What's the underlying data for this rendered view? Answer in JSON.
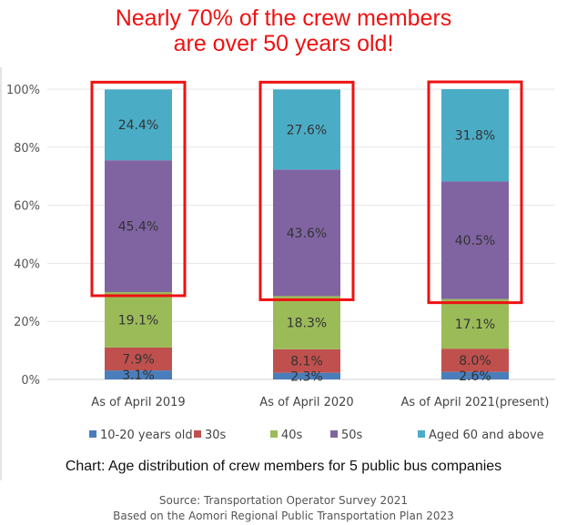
{
  "headline": {
    "line1": "Nearly 70% of the crew members",
    "line2": "are over 50 years old!"
  },
  "caption": "Chart: Age distribution of crew members for 5 public bus companies",
  "source": {
    "line1": "Source: Transportation Operator Survey 2021",
    "line2": "Based on the Aomori Regional Public Transportation Plan 2023"
  },
  "colors": {
    "highlight": "#ee1111",
    "headline": "#ee1111"
  },
  "chart_data": {
    "type": "bar",
    "stacked": true,
    "categories": [
      "As of April 2019",
      "As of April 2020",
      "As of April 2021(present)"
    ],
    "ylim": [
      0,
      100
    ],
    "yticks": [
      "0%",
      "20%",
      "40%",
      "60%",
      "80%",
      "100%"
    ],
    "grid": true,
    "legend_position": "bottom",
    "series": [
      {
        "name": "10-20 years old",
        "color": "#4a7ebb",
        "values": [
          3.1,
          2.3,
          2.6
        ],
        "labels": [
          "3.1%",
          "2.3%",
          "2.6%"
        ]
      },
      {
        "name": "30s",
        "color": "#c0504d",
        "values": [
          7.9,
          8.1,
          8.0
        ],
        "labels": [
          "7.9%",
          "8.1%",
          "8.0%"
        ]
      },
      {
        "name": "40s",
        "color": "#9bbb59",
        "values": [
          19.1,
          18.3,
          17.1
        ],
        "labels": [
          "19.1%",
          "18.3%",
          "17.1%"
        ]
      },
      {
        "name": "50s",
        "color": "#8064a2",
        "values": [
          45.4,
          43.6,
          40.5
        ],
        "labels": [
          "45.4%",
          "43.6%",
          "40.5%"
        ]
      },
      {
        "name": "Aged 60 and above",
        "color": "#4bacc6",
        "values": [
          24.4,
          27.6,
          31.8
        ],
        "labels": [
          "24.4%",
          "27.6%",
          "31.8%"
        ]
      }
    ],
    "highlighted_series": [
      "50s",
      "Aged 60 and above"
    ]
  }
}
